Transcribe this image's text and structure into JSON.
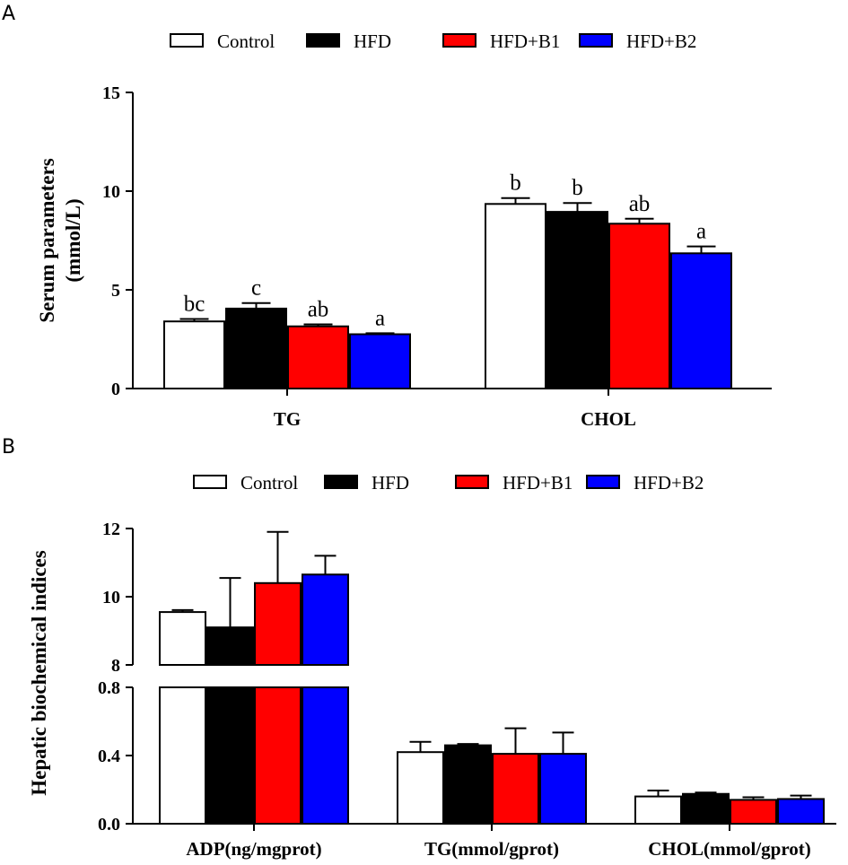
{
  "panel_labels": {
    "a": "A",
    "b": "B"
  },
  "series_colors": {
    "Control": "#ffffff",
    "HFD": "#000000",
    "HFD+B1": "#ff0000",
    "HFD+B2": "#0000ff"
  },
  "legend_a": [
    "Control",
    "HFD",
    "HFD+B1",
    "HFD+B2"
  ],
  "legend_b": [
    "Control",
    "HFD",
    "HFD+B1",
    "HFD+B2"
  ],
  "chart_data": [
    {
      "type": "bar",
      "panel": "A",
      "ylabel_line1": "Serum parameters",
      "ylabel_line2": "(mmol/L)",
      "ylim": [
        0,
        15
      ],
      "yticks": [
        "0",
        "5",
        "10",
        "15"
      ],
      "categories": [
        "TG",
        "CHOL"
      ],
      "series": [
        {
          "name": "Control",
          "values": [
            3.4,
            9.35
          ],
          "errors": [
            0.12,
            0.3
          ]
        },
        {
          "name": "HFD",
          "values": [
            4.05,
            8.95
          ],
          "errors": [
            0.28,
            0.45
          ]
        },
        {
          "name": "HFD+B1",
          "values": [
            3.15,
            8.35
          ],
          "errors": [
            0.1,
            0.25
          ]
        },
        {
          "name": "HFD+B2",
          "values": [
            2.75,
            6.85
          ],
          "errors": [
            0.05,
            0.35
          ]
        }
      ],
      "significance": [
        [
          "bc",
          "c",
          "ab",
          "a"
        ],
        [
          "b",
          "b",
          "ab",
          "a"
        ]
      ]
    },
    {
      "type": "bar",
      "panel": "B",
      "ylabel": "Hepatic biochemical indices",
      "axis_break": true,
      "ylim_lower": [
        0,
        0.8
      ],
      "ylim_upper": [
        8,
        12
      ],
      "yticks_lower": [
        "0.0",
        "0.4",
        "0.8"
      ],
      "yticks_upper": [
        "8",
        "10",
        "12"
      ],
      "categories": [
        "ADP(ng/mgprot)",
        "TG(mmol/gprot)",
        "CHOL(mmol/gprot)"
      ],
      "series": [
        {
          "name": "Control",
          "values": [
            9.55,
            0.42,
            0.16
          ],
          "errors": [
            0.06,
            0.06,
            0.035
          ]
        },
        {
          "name": "HFD",
          "values": [
            9.1,
            0.46,
            0.175
          ],
          "errors": [
            1.45,
            0.008,
            0.008
          ]
        },
        {
          "name": "HFD+B1",
          "values": [
            10.4,
            0.41,
            0.14
          ],
          "errors": [
            1.5,
            0.15,
            0.015
          ]
        },
        {
          "name": "HFD+B2",
          "values": [
            10.65,
            0.41,
            0.145
          ],
          "errors": [
            0.55,
            0.125,
            0.02
          ]
        }
      ]
    }
  ]
}
